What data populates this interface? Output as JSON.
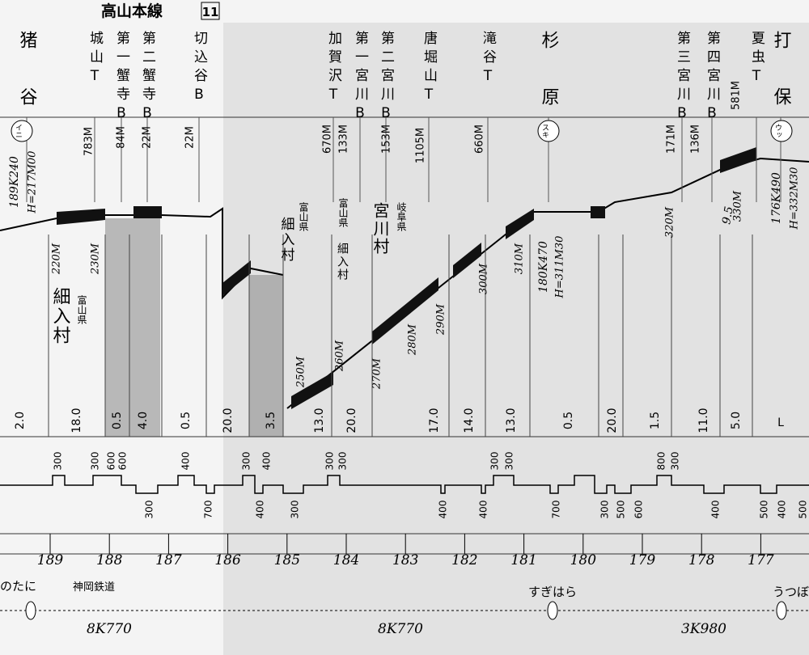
{
  "title": "高山本線",
  "page_number": "11",
  "stations": [
    "猪谷",
    "城山T",
    "第一蟹寺B",
    "第二蟹寺B",
    "切込谷B",
    "加賀沢T",
    "第一宮川B",
    "第二宮川B",
    "唐堀山T",
    "滝谷T",
    "杉原",
    "第三宮川B",
    "第四宮川B",
    "夏虫T",
    "打保"
  ],
  "lengths": [
    "783M",
    "84M",
    "22M",
    "22M",
    "670M",
    "133M",
    "153M",
    "1105M",
    "660M",
    "171M",
    "136M",
    "581M"
  ],
  "station_codes": [
    "イニ",
    "スキ",
    "ウッ"
  ],
  "km_posts": [
    {
      "km": "189K240",
      "height": "H=217M00"
    },
    {
      "km": "180K470",
      "height": "H=311M30"
    },
    {
      "km": "176K490",
      "height": "H=332M30"
    }
  ],
  "elevations": [
    "220M",
    "230M",
    "250M",
    "260M",
    "270M",
    "280M",
    "290M",
    "300M",
    "310M",
    "320M",
    "330M"
  ],
  "grade_note": "9.5",
  "gradients": [
    "2.0",
    "18.0",
    "0.5",
    "4.0",
    "0.5",
    "20.0",
    "3.5",
    "13.0",
    "20.0",
    "17.0",
    "14.0",
    "13.0",
    "0.5",
    "20.0",
    "1.5",
    "11.0",
    "5.0",
    "L"
  ],
  "areas": [
    {
      "main": "細入村",
      "sub": "富山県"
    },
    {
      "main": "細入村",
      "sub": "富山県"
    },
    {
      "main": "宮川村",
      "sub": "岐阜県"
    },
    {
      "main": "細入村",
      "sub": "富山県"
    }
  ],
  "curves_top": [
    "300",
    "300",
    "600",
    "600",
    "400",
    "300",
    "400",
    "300",
    "300",
    "300",
    "300",
    "800",
    "300"
  ],
  "curves_bottom": [
    "300",
    "700",
    "400",
    "300",
    "400",
    "400",
    "700",
    "300",
    "500",
    "600",
    "400",
    "500",
    "400",
    "500"
  ],
  "km_scale": [
    189,
    188,
    187,
    186,
    185,
    184,
    183,
    182,
    181,
    180,
    179,
    178,
    177
  ],
  "bottom": {
    "stations": [
      "のたに",
      "すぎはら",
      "うつぼ"
    ],
    "branch": "神岡鉄道",
    "distances": [
      "8K770",
      "8K770",
      "3K980"
    ]
  }
}
